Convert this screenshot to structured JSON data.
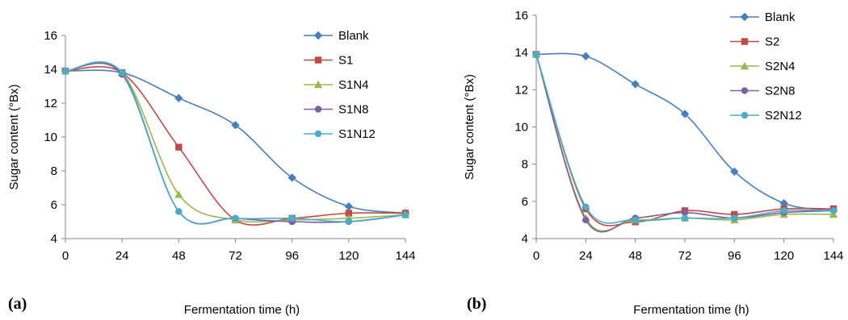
{
  "chart_data": [
    {
      "type": "line",
      "panel_label": "(a)",
      "xlabel": "Fermentation time (h)",
      "ylabel": "Sugar content (°Bx)",
      "x": [
        0,
        24,
        48,
        72,
        96,
        120,
        144
      ],
      "xticks": [
        "0",
        "24",
        "48",
        "72",
        "96",
        "120",
        "144"
      ],
      "xlim": [
        0,
        144
      ],
      "ylim": [
        4,
        16
      ],
      "yticks": [
        "4",
        "6",
        "8",
        "10",
        "12",
        "14",
        "16"
      ],
      "grid": false,
      "legend": "top-right",
      "series": [
        {
          "name": "Blank",
          "color": "#4a7ebb",
          "marker": "diamond",
          "values": [
            13.9,
            13.8,
            12.3,
            10.7,
            7.6,
            5.9,
            5.5
          ]
        },
        {
          "name": "S1",
          "color": "#be4b48",
          "marker": "square",
          "values": [
            13.9,
            13.8,
            9.4,
            5.1,
            5.2,
            5.5,
            5.5
          ]
        },
        {
          "name": "S1N4",
          "color": "#98b954",
          "marker": "triangle",
          "values": [
            13.9,
            13.8,
            6.6,
            5.1,
            5.1,
            5.2,
            5.4
          ]
        },
        {
          "name": "S1N8",
          "color": "#7d60a0",
          "marker": "x",
          "values": [
            13.9,
            13.7,
            5.6,
            5.2,
            5.0,
            5.0,
            5.4
          ]
        },
        {
          "name": "S1N12",
          "color": "#4bacc6",
          "marker": "star",
          "values": [
            13.9,
            13.8,
            5.6,
            5.2,
            5.2,
            5.0,
            5.4
          ]
        }
      ]
    },
    {
      "type": "line",
      "panel_label": "(b)",
      "xlabel": "Fermentation time (h)",
      "ylabel": "Sugar content (°Bx)",
      "x": [
        0,
        24,
        48,
        72,
        96,
        120,
        144
      ],
      "xticks": [
        "0",
        "24",
        "48",
        "72",
        "96",
        "120",
        "144"
      ],
      "xlim": [
        0,
        144
      ],
      "ylim": [
        4,
        16
      ],
      "yticks": [
        "4",
        "6",
        "8",
        "10",
        "12",
        "14",
        "16"
      ],
      "grid": false,
      "legend": "top-right",
      "series": [
        {
          "name": "Blank",
          "color": "#4a7ebb",
          "marker": "diamond",
          "values": [
            13.9,
            13.8,
            12.3,
            10.7,
            7.6,
            5.9,
            5.5
          ]
        },
        {
          "name": "S2",
          "color": "#be4b48",
          "marker": "square",
          "values": [
            13.9,
            5.6,
            4.9,
            5.5,
            5.3,
            5.6,
            5.6
          ]
        },
        {
          "name": "S2N4",
          "color": "#98b954",
          "marker": "triangle",
          "values": [
            13.9,
            5.1,
            5.0,
            5.1,
            5.0,
            5.3,
            5.3
          ]
        },
        {
          "name": "S2N8",
          "color": "#7d60a0",
          "marker": "x",
          "values": [
            13.9,
            5.0,
            5.1,
            5.4,
            5.1,
            5.4,
            5.5
          ]
        },
        {
          "name": "S2N12",
          "color": "#4bacc6",
          "marker": "star",
          "values": [
            13.9,
            5.7,
            5.0,
            5.1,
            5.1,
            5.5,
            5.5
          ]
        }
      ]
    }
  ]
}
